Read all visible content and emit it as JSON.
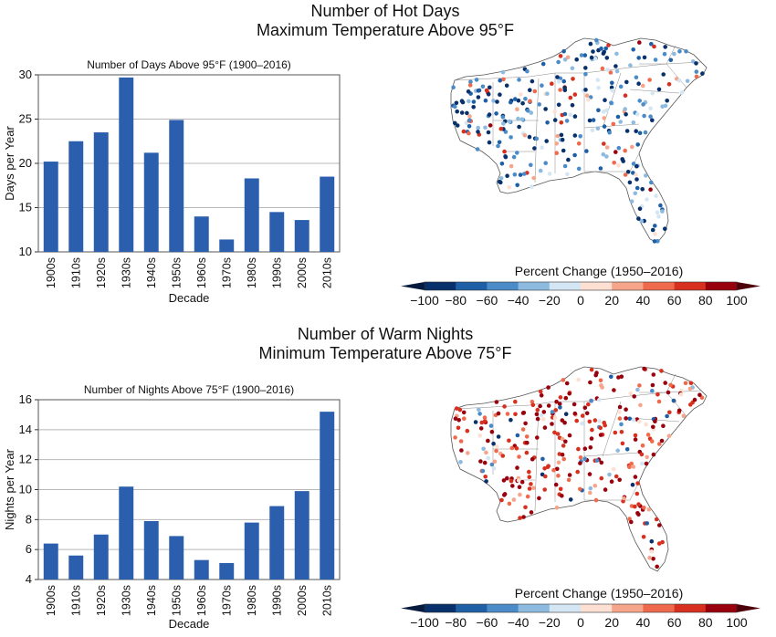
{
  "top": {
    "title_line1": "Number of Hot Days",
    "title_line2": "Maximum Temperature Above 95°F"
  },
  "bottom": {
    "title_line1": "Number of Warm Nights",
    "title_line2": "Minimum Temperature Above 75°F"
  },
  "colorbar": {
    "title": "Percent Change (1950–2016)",
    "ticks": [
      "−100",
      "−80",
      "−60",
      "−40",
      "−20",
      "0",
      "20",
      "40",
      "60",
      "80",
      "100"
    ],
    "colors": [
      "#08306b",
      "#1f5fa6",
      "#4a8bc8",
      "#8dbbe0",
      "#d4e6f4",
      "#fde0d2",
      "#f6a58a",
      "#ef6a4c",
      "#d7301f",
      "#99000d"
    ]
  },
  "colors": {
    "bar": "#2b5fad",
    "grid": "#b8b8b8"
  },
  "chart_data": [
    {
      "type": "bar",
      "title": "Number of Days Above 95°F (1900–2016)",
      "xlabel": "Decade",
      "ylabel": "Days per Year",
      "ylim": [
        10,
        30
      ],
      "yticks": [
        10,
        15,
        20,
        25,
        30
      ],
      "grid": true,
      "categories": [
        "1900s",
        "1910s",
        "1920s",
        "1930s",
        "1940s",
        "1950s",
        "1960s",
        "1970s",
        "1980s",
        "1990s",
        "2000s",
        "2010s"
      ],
      "values": [
        20.2,
        22.5,
        23.5,
        29.7,
        21.2,
        24.9,
        14.0,
        11.4,
        18.3,
        14.5,
        13.6,
        18.5
      ]
    },
    {
      "type": "bar",
      "title": "Number of Nights Above 75°F (1900–2016)",
      "xlabel": "Decade",
      "ylabel": "Nights per Year",
      "ylim": [
        4,
        16
      ],
      "yticks": [
        4,
        6,
        8,
        10,
        12,
        14,
        16
      ],
      "grid": true,
      "categories": [
        "1900s",
        "1910s",
        "1920s",
        "1930s",
        "1940s",
        "1950s",
        "1960s",
        "1970s",
        "1980s",
        "1990s",
        "2000s",
        "2010s"
      ],
      "values": [
        6.4,
        5.6,
        7.0,
        10.2,
        7.9,
        6.9,
        5.3,
        5.1,
        7.8,
        8.9,
        9.9,
        15.2
      ]
    }
  ]
}
